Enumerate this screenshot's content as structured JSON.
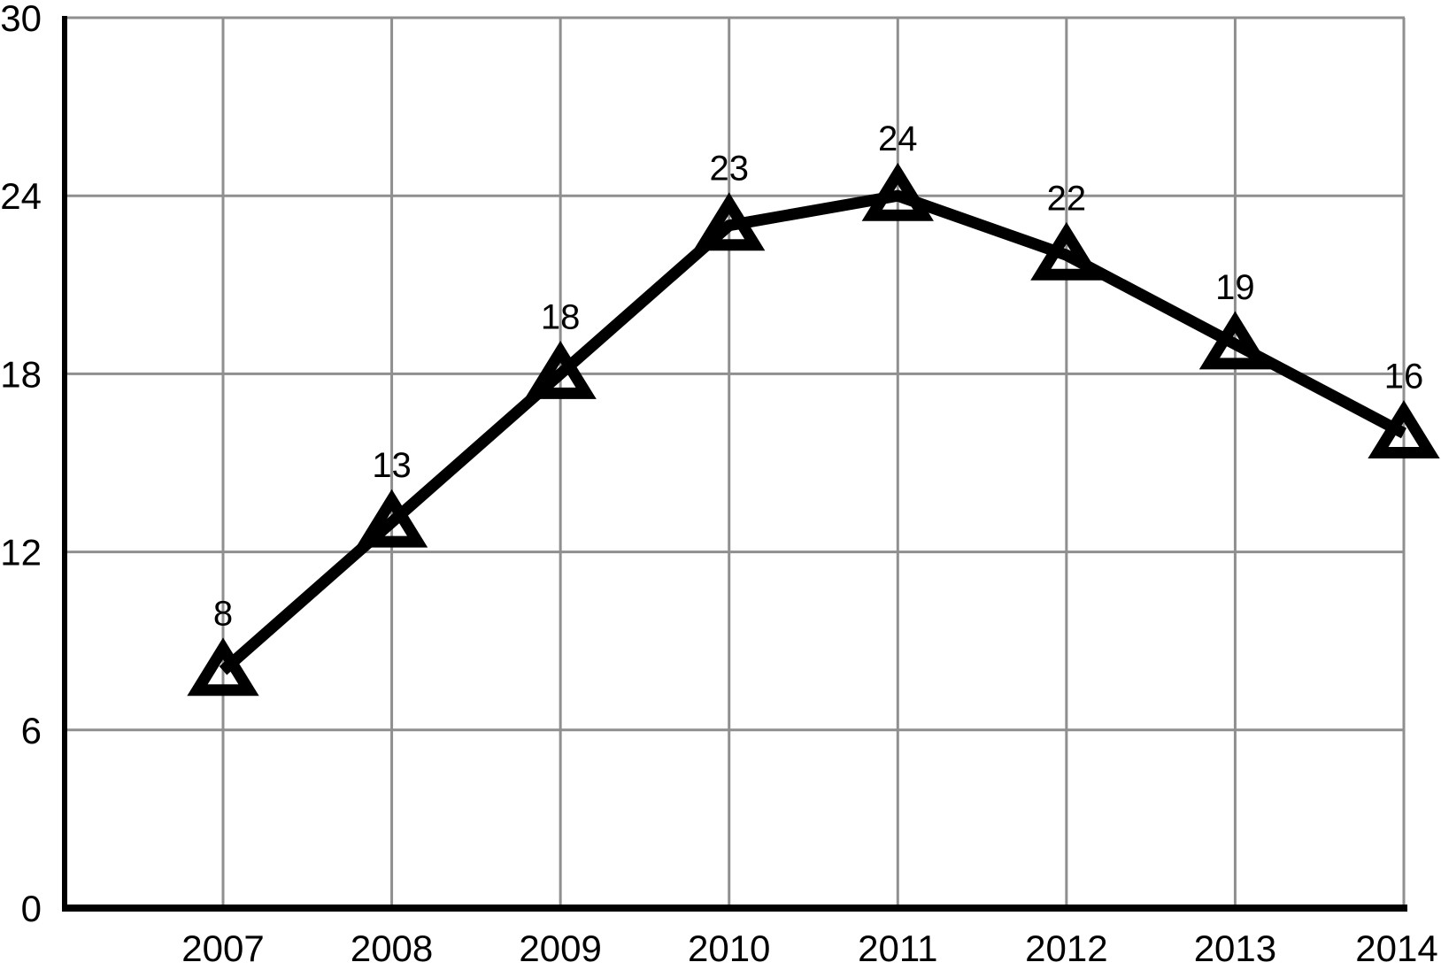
{
  "chart_data": {
    "type": "line",
    "title": "",
    "xlabel": "",
    "ylabel": "",
    "categories": [
      "2007",
      "2008",
      "2009",
      "2010",
      "2011",
      "2012",
      "2013",
      "2014"
    ],
    "series": [
      {
        "name": "series-1",
        "values": [
          8,
          13,
          18,
          23,
          24,
          22,
          19,
          16
        ]
      }
    ],
    "data_labels": [
      "8",
      "13",
      "18",
      "23",
      "24",
      "22",
      "19",
      "16"
    ],
    "ylim": [
      0,
      30
    ],
    "yticks": [
      0,
      6,
      12,
      18,
      24,
      30
    ],
    "ytick_labels": [
      "0",
      "6",
      "12",
      "18",
      "24",
      "30"
    ],
    "grid": true,
    "legend": false,
    "marker": "open-triangle",
    "colors": {
      "line": "#000000",
      "marker_stroke": "#000000",
      "grid": "#8f8f8f",
      "axis": "#000000",
      "text": "#000000",
      "background": "#ffffff"
    }
  }
}
